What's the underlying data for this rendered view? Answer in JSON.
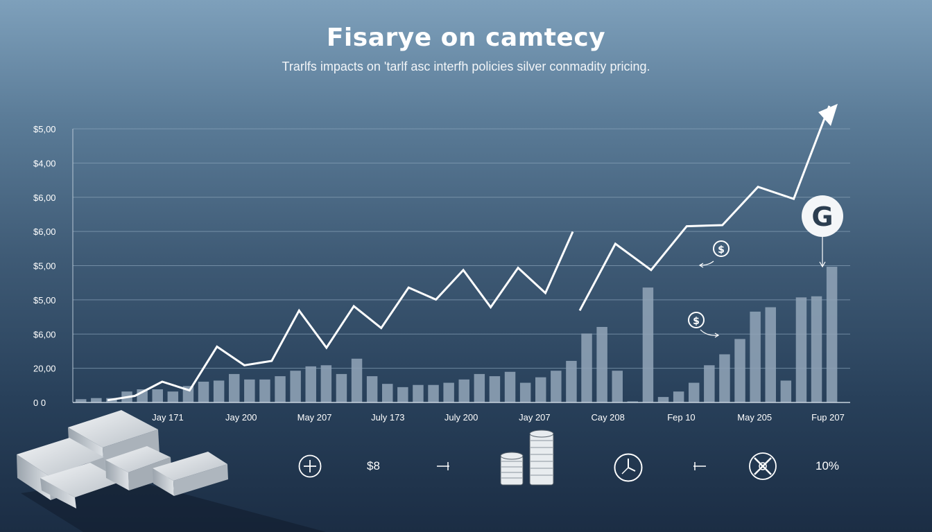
{
  "title": "Fisarye on camtecy",
  "subtitle": "Trarlfs impacts on 'tarlf asc interfh policies silver conmadity pricing.",
  "chart_data": {
    "type": "bar",
    "ytick_labels": [
      "$5,00",
      "$4,00",
      "$6,00",
      "$6,00",
      "$5,00",
      "$5,00",
      "$6,00",
      "20,00",
      "0 0"
    ],
    "xtick_labels": [
      "Jay 171",
      "Jay 200",
      "May 207",
      "July 173",
      "July 200",
      "Jay 207",
      "Cay 208",
      "Fep 10",
      "May 205",
      "Fup 207"
    ],
    "grid": true,
    "bar_values": [
      0.3,
      0.4,
      0.4,
      1.0,
      1.2,
      1.2,
      1.0,
      1.5,
      1.9,
      2.0,
      2.6,
      2.1,
      2.1,
      2.4,
      2.9,
      3.3,
      3.4,
      2.6,
      4.0,
      2.4,
      1.7,
      1.4,
      1.6,
      1.6,
      1.8,
      2.1,
      2.6,
      2.4,
      2.8,
      1.8,
      2.3,
      2.9,
      3.8,
      6.3,
      6.9,
      2.9,
      0.1,
      10.5,
      0.5,
      1.0,
      1.8,
      3.4,
      4.4,
      5.8,
      8.3,
      8.7,
      2.0,
      9.6,
      9.7,
      12.4
    ],
    "line_segment_1": [
      0.2,
      0.6,
      1.9,
      1.1,
      5.1,
      3.4,
      3.8,
      8.4,
      5.0,
      8.8,
      6.8,
      10.5,
      9.4,
      12.1,
      8.7,
      12.3,
      10.0,
      15.6
    ],
    "line_segment_2": [
      8.4,
      14.5,
      12.1,
      16.1,
      16.2,
      19.7,
      18.6,
      27.1
    ],
    "ylim": [
      0,
      25
    ],
    "annotations": [
      {
        "icon": "dollar-coin-icon",
        "label": "$"
      },
      {
        "icon": "dollar-coin-icon",
        "label": "$"
      },
      {
        "icon": "g-logo-icon",
        "label": "G"
      }
    ]
  },
  "bottom_row": {
    "plus_icon": "circle-plus-icon",
    "currency_label": "$8",
    "coin_icon": "coin-stack-icon",
    "clock_icon": "clock-icon",
    "tool_icon": "crossed-tools-icon",
    "percent_label": "10%"
  },
  "colors": {
    "bar": "#8fa3b6",
    "line": "#ffffff",
    "grid": "#8aa4ba"
  }
}
